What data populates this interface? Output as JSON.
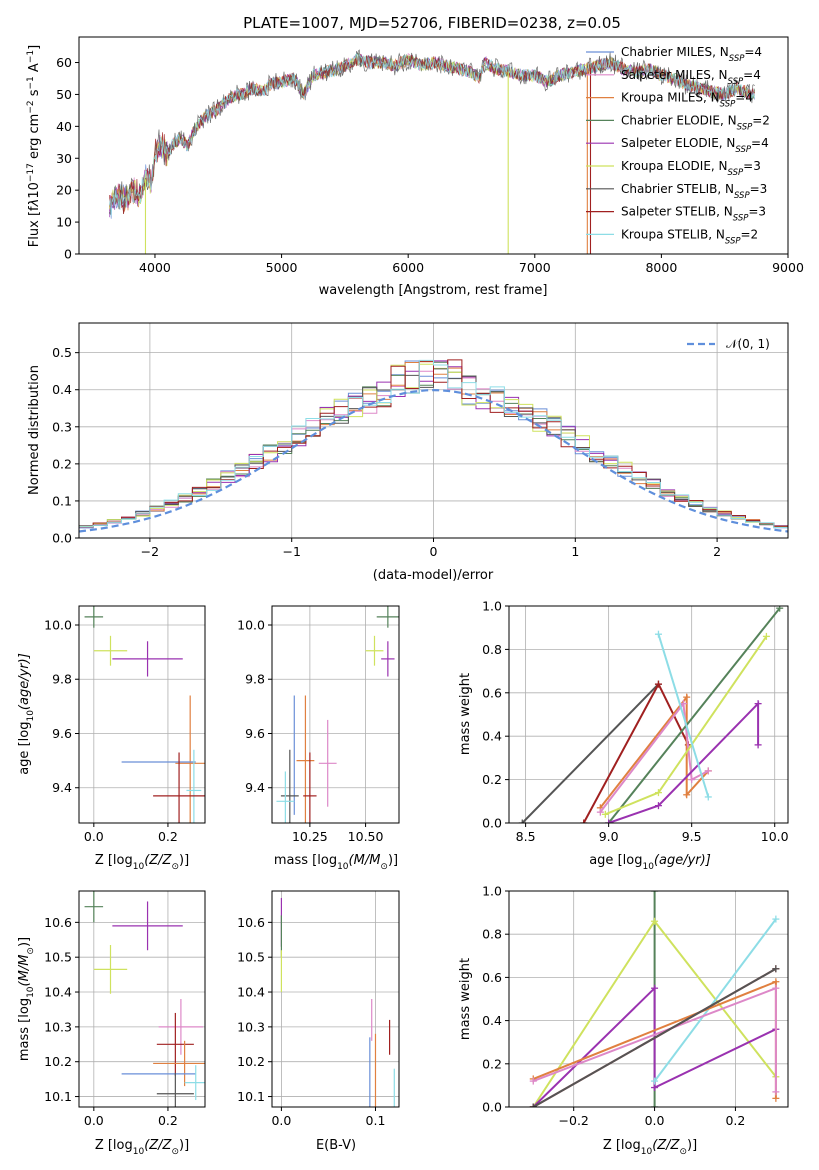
{
  "chart_data": [
    {
      "type": "line",
      "title": "PLATE=1007, MJD=52706, FIBERID=0238, z=0.05",
      "xlabel": "wavelength [Angstrom, rest frame]",
      "ylabel_parts": [
        "Flux [f",
        "λ",
        "10",
        "−17",
        " erg cm",
        "−2",
        " s",
        "−1",
        " A",
        "−1",
        "]"
      ],
      "xlim": [
        3400,
        9000
      ],
      "ylim": [
        0,
        68
      ],
      "xticks": [
        4000,
        5000,
        6000,
        7000,
        8000,
        9000
      ],
      "yticks": [
        0,
        10,
        20,
        30,
        40,
        50,
        60
      ],
      "grid": false,
      "legend_placement": "right",
      "spectrum_nodes": [
        [
          3640,
          15
        ],
        [
          3700,
          18
        ],
        [
          3760,
          17
        ],
        [
          3830,
          20
        ],
        [
          3880,
          18
        ],
        [
          3930,
          24
        ],
        [
          3970,
          22
        ],
        [
          4000,
          32
        ],
        [
          4060,
          34
        ],
        [
          4100,
          31
        ],
        [
          4150,
          35
        ],
        [
          4200,
          36
        ],
        [
          4260,
          34
        ],
        [
          4300,
          38
        ],
        [
          4350,
          41
        ],
        [
          4400,
          43
        ],
        [
          4480,
          45
        ],
        [
          4540,
          47
        ],
        [
          4600,
          49
        ],
        [
          4650,
          50
        ],
        [
          4700,
          50
        ],
        [
          4760,
          52
        ],
        [
          4860,
          51
        ],
        [
          4900,
          53
        ],
        [
          5000,
          54
        ],
        [
          5100,
          55
        ],
        [
          5175,
          50
        ],
        [
          5250,
          56
        ],
        [
          5350,
          57
        ],
        [
          5450,
          58
        ],
        [
          5550,
          60
        ],
        [
          5600,
          61
        ],
        [
          5700,
          60
        ],
        [
          5800,
          60
        ],
        [
          5900,
          59
        ],
        [
          6000,
          61
        ],
        [
          6100,
          59
        ],
        [
          6200,
          60
        ],
        [
          6300,
          59
        ],
        [
          6400,
          58
        ],
        [
          6500,
          57
        ],
        [
          6563,
          55
        ],
        [
          6600,
          60
        ],
        [
          6700,
          58
        ],
        [
          6800,
          57
        ],
        [
          6900,
          56
        ],
        [
          7000,
          56
        ],
        [
          7100,
          54
        ],
        [
          7200,
          56
        ],
        [
          7300,
          57
        ],
        [
          7400,
          58
        ],
        [
          7500,
          59
        ],
        [
          7600,
          60
        ],
        [
          7700,
          58
        ],
        [
          7800,
          57
        ],
        [
          7900,
          58
        ],
        [
          8000,
          56
        ],
        [
          8100,
          55
        ],
        [
          8200,
          53
        ],
        [
          8300,
          52
        ],
        [
          8400,
          51
        ],
        [
          8500,
          50
        ],
        [
          8600,
          52
        ],
        [
          8700,
          50
        ],
        [
          8740,
          50
        ]
      ]
    },
    {
      "type": "histogram",
      "xlabel": "(data-model)/error",
      "ylabel": "Normed distribution",
      "xlim": [
        -2.5,
        2.5
      ],
      "ylim": [
        0,
        0.58
      ],
      "xticks": [
        -2,
        -1,
        0,
        1,
        2
      ],
      "yticks": [
        0.0,
        0.1,
        0.2,
        0.3,
        0.4,
        0.5
      ],
      "grid": true,
      "legend_placement": "top-right",
      "legend": "𝒩(0, 1)",
      "bin_width": 0.1
    },
    {
      "type": "scatter",
      "xlabel_parts": [
        "Z [log",
        "10",
        "(Z/Z",
        "⊙",
        ")]"
      ],
      "ylabel_parts": [
        "age  [log",
        "10",
        "(age/yr)]"
      ],
      "xlim": [
        -0.04,
        0.3
      ],
      "ylim": [
        9.27,
        10.07
      ],
      "xticks": [
        0.0,
        0.2
      ],
      "yticks": [
        9.4,
        9.6,
        9.8,
        10.0
      ],
      "grid": true,
      "points": [
        {
          "x": 0.0,
          "y": 10.03,
          "xerr": 0.025,
          "yerr": 0.04,
          "color": "#55825a"
        },
        {
          "x": 0.045,
          "y": 9.905,
          "xerr": 0.045,
          "yerr": 0.055,
          "color": "#cfe25e"
        },
        {
          "x": 0.145,
          "y": 9.875,
          "xerr": 0.095,
          "yerr": 0.065,
          "color": "#9a32b0"
        },
        {
          "x": 0.26,
          "y": 9.49,
          "xerr": 0.04,
          "yerr": 0.25,
          "color": "#e08040"
        },
        {
          "x": 0.175,
          "y": 9.495,
          "xerr": 0.1,
          "yerr": 0.0,
          "color": "#6a8fd8"
        },
        {
          "x": 0.27,
          "y": 9.39,
          "xerr": 0.02,
          "yerr": 0.15,
          "color": "#8ddde6"
        },
        {
          "x": 0.23,
          "y": 9.37,
          "xerr": 0.07,
          "yerr": 0.16,
          "color": "#a02020"
        }
      ]
    },
    {
      "type": "scatter",
      "xlabel_parts": [
        "mass [log",
        "10",
        "(M/M",
        "⊙",
        ")]"
      ],
      "xlim": [
        10.08,
        10.65
      ],
      "ylim": [
        9.27,
        10.07
      ],
      "xticks": [
        10.25,
        10.5
      ],
      "yticks": [
        9.4,
        9.6,
        9.8,
        10.0
      ],
      "grid": true,
      "points": [
        {
          "x": 10.6,
          "y": 10.03,
          "xerr": 0.05,
          "yerr": 0.04,
          "color": "#55825a"
        },
        {
          "x": 10.54,
          "y": 9.905,
          "xerr": 0.04,
          "yerr": 0.055,
          "color": "#cfe25e"
        },
        {
          "x": 10.6,
          "y": 9.875,
          "xerr": 0.03,
          "yerr": 0.065,
          "color": "#9a32b0"
        },
        {
          "x": 10.23,
          "y": 9.5,
          "xerr": 0.04,
          "yerr": 0.24,
          "color": "#e08040"
        },
        {
          "x": 10.33,
          "y": 9.49,
          "xerr": 0.04,
          "yerr": 0.16,
          "color": "#dd88c8"
        },
        {
          "x": 10.18,
          "y": 9.52,
          "xerr": 0.0,
          "yerr": 0.22,
          "color": "#6a8fd8"
        },
        {
          "x": 10.16,
          "y": 9.37,
          "xerr": 0.04,
          "yerr": 0.17,
          "color": "#555555"
        },
        {
          "x": 10.14,
          "y": 9.35,
          "xerr": 0.04,
          "yerr": 0.11,
          "color": "#8ddde6"
        },
        {
          "x": 10.25,
          "y": 9.37,
          "xerr": 0.03,
          "yerr": 0.16,
          "color": "#a02020"
        }
      ]
    },
    {
      "type": "line",
      "xlabel_parts": [
        "age  [log",
        "10",
        "(age/yr)]"
      ],
      "ylabel": "mass weight",
      "xlim": [
        8.4,
        10.08
      ],
      "ylim": [
        0,
        1.0
      ],
      "xticks": [
        8.5,
        9.0,
        9.5,
        10.0
      ],
      "yticks": [
        0.0,
        0.2,
        0.4,
        0.6,
        0.8,
        1.0
      ],
      "grid": true,
      "series": [
        {
          "color": "#555555",
          "x": [
            8.48,
            9.3
          ],
          "y": [
            0.0,
            0.64
          ]
        },
        {
          "color": "#a02020",
          "x": [
            8.85,
            9.3,
            9.48
          ],
          "y": [
            0.0,
            0.64,
            0.36
          ]
        },
        {
          "color": "#e08040",
          "x": [
            8.95,
            9.47,
            9.47,
            9.6
          ],
          "y": [
            0.07,
            0.58,
            0.13,
            0.24
          ]
        },
        {
          "color": "#dd88c8",
          "x": [
            8.95,
            9.45,
            9.5,
            9.6
          ],
          "y": [
            0.05,
            0.55,
            0.2,
            0.24
          ]
        },
        {
          "color": "#55825a",
          "x": [
            9.0,
            10.03
          ],
          "y": [
            0.0,
            0.99
          ]
        },
        {
          "color": "#cfe25e",
          "x": [
            8.98,
            9.3,
            9.95
          ],
          "y": [
            0.04,
            0.14,
            0.86
          ]
        },
        {
          "color": "#9a32b0",
          "x": [
            9.0,
            9.3,
            9.9,
            9.9
          ],
          "y": [
            0.0,
            0.08,
            0.55,
            0.36
          ]
        },
        {
          "color": "#8ddde6",
          "x": [
            9.3,
            9.6
          ],
          "y": [
            0.87,
            0.12
          ]
        }
      ]
    },
    {
      "type": "scatter",
      "xlabel_parts": [
        "Z [log",
        "10",
        "(Z/Z",
        "⊙",
        ")]"
      ],
      "ylabel_parts": [
        "mass [log",
        "10",
        "(M/M",
        "⊙",
        ")]"
      ],
      "xlim": [
        -0.04,
        0.3
      ],
      "ylim": [
        10.07,
        10.69
      ],
      "xticks": [
        0.0,
        0.2
      ],
      "yticks": [
        10.1,
        10.2,
        10.3,
        10.4,
        10.5,
        10.6
      ],
      "grid": true,
      "points": [
        {
          "x": 0.0,
          "y": 10.645,
          "xerr": 0.025,
          "yerr": 0.045,
          "color": "#55825a"
        },
        {
          "x": 0.145,
          "y": 10.59,
          "xerr": 0.095,
          "yerr": 0.07,
          "color": "#9a32b0"
        },
        {
          "x": 0.045,
          "y": 10.465,
          "xerr": 0.045,
          "yerr": 0.07,
          "color": "#cfe25e"
        },
        {
          "x": 0.235,
          "y": 10.3,
          "xerr": 0.06,
          "yerr": 0.08,
          "color": "#dd88c8"
        },
        {
          "x": 0.22,
          "y": 10.25,
          "xerr": 0.05,
          "yerr": 0.09,
          "color": "#a02020"
        },
        {
          "x": 0.245,
          "y": 10.195,
          "xerr": 0.085,
          "yerr": 0.065,
          "color": "#e08040"
        },
        {
          "x": 0.175,
          "y": 10.165,
          "xerr": 0.1,
          "yerr": 0.0,
          "color": "#6a8fd8"
        },
        {
          "x": 0.275,
          "y": 10.14,
          "xerr": 0.03,
          "yerr": 0.05,
          "color": "#8ddde6"
        },
        {
          "x": 0.22,
          "y": 10.108,
          "xerr": 0.05,
          "yerr": 0.06,
          "color": "#555555"
        }
      ]
    },
    {
      "type": "scatter",
      "xlabel": "E(B-V)",
      "xlim": [
        -0.01,
        0.125
      ],
      "ylim": [
        10.07,
        10.69
      ],
      "xticks": [
        0.0,
        0.1
      ],
      "yticks": [
        10.1,
        10.2,
        10.3,
        10.4,
        10.5,
        10.6
      ],
      "grid": true,
      "points": [
        {
          "x": 0.0,
          "y": 10.6,
          "xerr": 0.0,
          "yerr": 0.07,
          "color": "#9a32b0"
        },
        {
          "x": 0.0,
          "y": 10.56,
          "xerr": 0.0,
          "yerr": 0.06,
          "color": "#55825a"
        },
        {
          "x": 0.0,
          "y": 10.46,
          "xerr": 0.0,
          "yerr": 0.06,
          "color": "#cfe25e"
        },
        {
          "x": 0.096,
          "y": 10.32,
          "xerr": 0.0,
          "yerr": 0.06,
          "color": "#dd88c8"
        },
        {
          "x": 0.115,
          "y": 10.27,
          "xerr": 0.0,
          "yerr": 0.05,
          "color": "#a02020"
        },
        {
          "x": 0.094,
          "y": 10.16,
          "xerr": 0.0,
          "yerr": 0.11,
          "color": "#6a8fd8"
        },
        {
          "x": 0.1,
          "y": 10.17,
          "xerr": 0.0,
          "yerr": 0.11,
          "color": "#e08040"
        },
        {
          "x": 0.12,
          "y": 10.12,
          "xerr": 0.0,
          "yerr": 0.06,
          "color": "#8ddde6"
        }
      ]
    },
    {
      "type": "line",
      "xlabel_parts": [
        "Z [log",
        "10",
        "(Z/Z",
        "⊙",
        ")]"
      ],
      "ylabel": "mass weight",
      "xlim": [
        -0.36,
        0.33
      ],
      "ylim": [
        0,
        1.0
      ],
      "xticks": [
        -0.2,
        0.0,
        0.2
      ],
      "yticks": [
        0.0,
        0.2,
        0.4,
        0.6,
        0.8,
        1.0
      ],
      "grid": true,
      "series": [
        {
          "color": "#55825a",
          "x": [
            0.0,
            0.0
          ],
          "y": [
            0.0,
            1.0
          ]
        },
        {
          "color": "#cfe25e",
          "x": [
            -0.3,
            0.0,
            0.3
          ],
          "y": [
            0.0,
            0.86,
            0.14
          ]
        },
        {
          "color": "#9a32b0",
          "x": [
            -0.3,
            0.0,
            0.0,
            0.3
          ],
          "y": [
            0.0,
            0.55,
            0.09,
            0.36
          ]
        },
        {
          "color": "#8ddde6",
          "x": [
            0.0,
            0.3
          ],
          "y": [
            0.12,
            0.87
          ]
        },
        {
          "color": "#e08040",
          "x": [
            -0.3,
            0.3,
            0.3
          ],
          "y": [
            0.13,
            0.58,
            0.04
          ]
        },
        {
          "color": "#dd88c8",
          "x": [
            -0.3,
            0.3,
            0.3
          ],
          "y": [
            0.12,
            0.55,
            0.07
          ]
        },
        {
          "color": "#a02020",
          "x": [
            -0.3,
            0.3
          ],
          "y": [
            0.0,
            0.64
          ]
        },
        {
          "color": "#555555",
          "x": [
            -0.3,
            0.3
          ],
          "y": [
            0.0,
            0.64
          ]
        }
      ]
    }
  ],
  "legend_entries": [
    {
      "label": "Chabrier MILES, N",
      "sub": "SSP",
      "suffix": "=4",
      "color": "#6a8fd8"
    },
    {
      "label": "Salpeter MILES, N",
      "sub": "SSP",
      "suffix": "=4",
      "color": "#dd88c8"
    },
    {
      "label": "Kroupa MILES, N",
      "sub": "SSP",
      "suffix": "=4",
      "color": "#e08040"
    },
    {
      "label": "Chabrier ELODIE, N",
      "sub": "SSP",
      "suffix": "=2",
      "color": "#55825a"
    },
    {
      "label": "Salpeter ELODIE, N",
      "sub": "SSP",
      "suffix": "=4",
      "color": "#9a32b0"
    },
    {
      "label": "Kroupa ELODIE, N",
      "sub": "SSP",
      "suffix": "=3",
      "color": "#cfe25e"
    },
    {
      "label": "Chabrier STELIB, N",
      "sub": "SSP",
      "suffix": "=3",
      "color": "#555555"
    },
    {
      "label": "Salpeter STELIB, N",
      "sub": "SSP",
      "suffix": "=3",
      "color": "#a02020"
    },
    {
      "label": "Kroupa STELIB, N",
      "sub": "SSP",
      "suffix": "=2",
      "color": "#8ddde6"
    }
  ]
}
